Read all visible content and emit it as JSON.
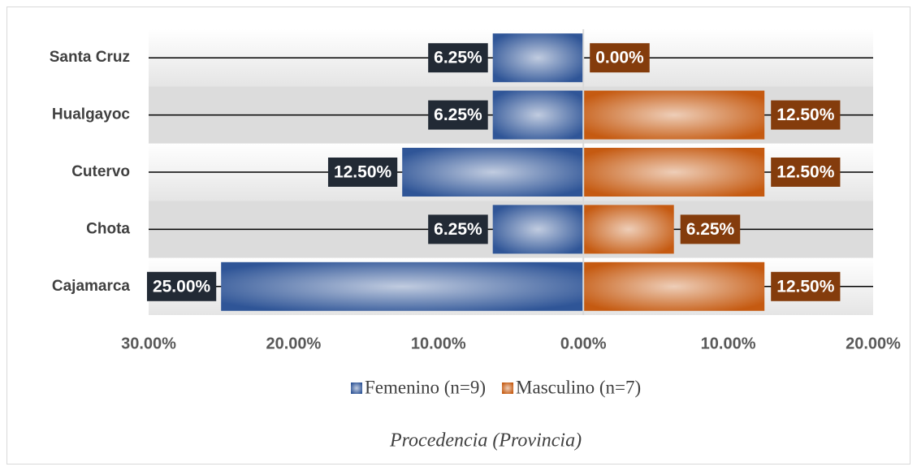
{
  "chart_data": {
    "type": "butterfly-bar",
    "title": "Procedencia (Provincia)",
    "categories": [
      "Santa Cruz",
      "Hualgayoc",
      "Cutervo",
      "Chota",
      "Cajamarca"
    ],
    "series": [
      {
        "name": "Femenino (n=9)",
        "color": "#2f5597",
        "label_color": "#222a35",
        "values": [
          -6.25,
          -6.25,
          -12.5,
          -6.25,
          -25
        ],
        "value_labels": [
          "6.25%",
          "6.25%",
          "12.50%",
          "6.25%",
          "25.00%"
        ]
      },
      {
        "name": "Masculino (n=7)",
        "color": "#c55a11",
        "label_color": "#843c0c",
        "values": [
          0,
          12.5,
          12.5,
          6.25,
          12.5
        ],
        "value_labels": [
          "0.00%",
          "12.50%",
          "12.50%",
          "6.25%",
          "12.50%"
        ]
      }
    ],
    "xlim": [
      -30,
      20
    ],
    "xticks": [
      {
        "value": -30,
        "label": "30.00%"
      },
      {
        "value": -20,
        "label": "20.00%"
      },
      {
        "value": -10,
        "label": "10.00%"
      },
      {
        "value": 0,
        "label": "0.00%"
      },
      {
        "value": 10,
        "label": "10.00%"
      },
      {
        "value": 20,
        "label": "20.00%"
      }
    ],
    "grid": true
  }
}
